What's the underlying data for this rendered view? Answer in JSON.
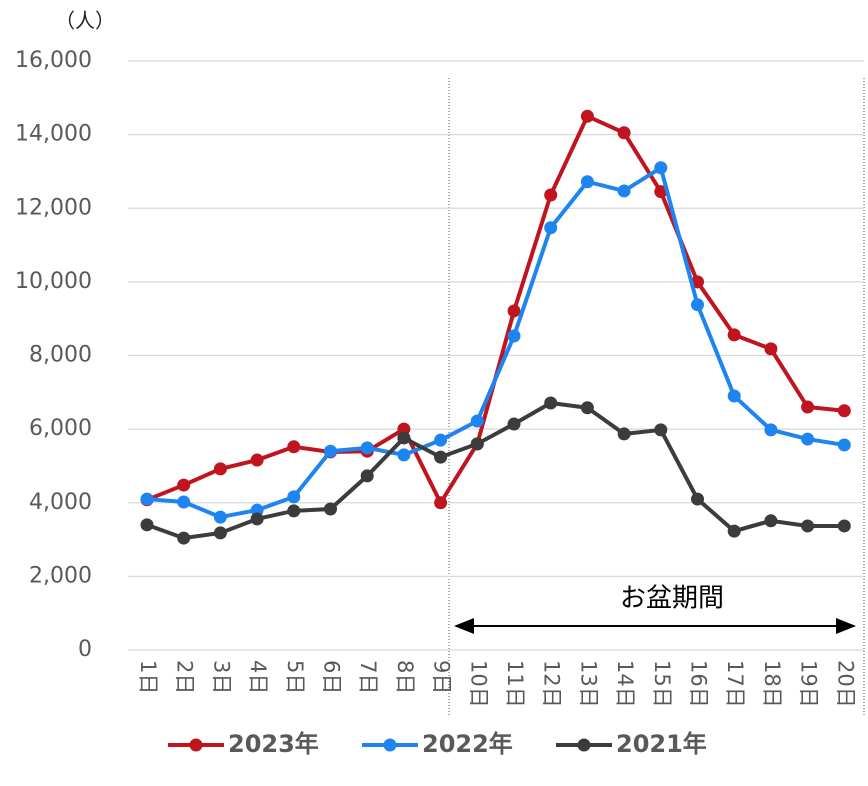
{
  "chart_data": {
    "type": "line",
    "y_unit": "（人）",
    "categories": [
      "1日",
      "2日",
      "3日",
      "4日",
      "5日",
      "6日",
      "7日",
      "8日",
      "9日",
      "10日",
      "11日",
      "12日",
      "13日",
      "14日",
      "15日",
      "16日",
      "17日",
      "18日",
      "19日",
      "20日"
    ],
    "series": [
      {
        "name": "2023年",
        "color": "#c0141e",
        "values": [
          4080,
          4480,
          4920,
          5160,
          5520,
          5380,
          5400,
          6000,
          4000,
          5600,
          9210,
          12360,
          14500,
          14050,
          12450,
          10000,
          8560,
          8180,
          6600,
          6500
        ]
      },
      {
        "name": "2022年",
        "color": "#1e84f0",
        "values": [
          4100,
          4020,
          3610,
          3800,
          4160,
          5400,
          5490,
          5300,
          5700,
          6220,
          8530,
          11470,
          12720,
          12470,
          13100,
          9380,
          6900,
          5980,
          5730,
          5570
        ]
      },
      {
        "name": "2021年",
        "color": "#3c3c3c",
        "values": [
          3400,
          3040,
          3180,
          3560,
          3780,
          3830,
          4730,
          5760,
          5240,
          5600,
          6140,
          6710,
          6580,
          5870,
          5980,
          4100,
          3230,
          3510,
          3370,
          3370
        ]
      }
    ],
    "ylim": [
      0,
      16000
    ],
    "yticks": [
      0,
      {
        "value": 2000,
        "label": "2,000"
      },
      {
        "value": 4000,
        "label": "4,000"
      },
      {
        "value": 6000,
        "label": "6,000"
      },
      {
        "value": 8000,
        "label": "8,000"
      },
      {
        "value": 10000,
        "label": "10,000"
      },
      {
        "value": 12000,
        "label": "12,000"
      },
      {
        "value": 14000,
        "label": "14,000"
      },
      {
        "value": 16000,
        "label": "16,000"
      }
    ],
    "grid": true,
    "annotation": "お盆期間"
  }
}
